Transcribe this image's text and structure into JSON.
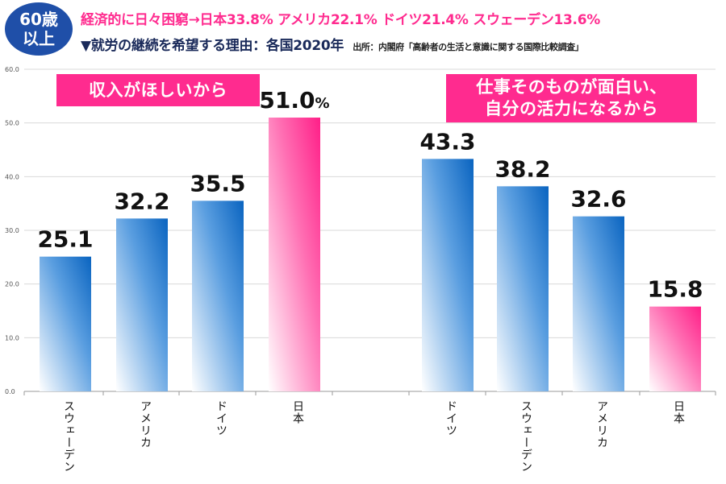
{
  "badge": {
    "line1": "60歳",
    "line2": "以上"
  },
  "headline": "経済的に日々困窮→日本33.8% アメリカ22.1% ドイツ21.4% スウェーデン13.6%",
  "subtitle": "▼就労の継続を希望する理由：各国2020年",
  "source": "出所：内閣府「高齢者の生活と意識に関する国際比較調査」",
  "colors": {
    "blue": "#1a6fc4",
    "pink": "#ff2b8f",
    "badge": "#1f4fa8",
    "label_bg": "#ff2b8f"
  },
  "chart_data": {
    "type": "bar",
    "ylim": [
      0,
      60
    ],
    "yticks": [
      "0.0",
      "10.0",
      "20.0",
      "30.0",
      "40.0",
      "50.0",
      "60.0"
    ],
    "grid": true,
    "groups": [
      {
        "label": "収入がほしいから",
        "categories": [
          "スウェーデン",
          "アメリカ",
          "ドイツ",
          "日本"
        ],
        "values": [
          25.1,
          32.2,
          35.5,
          51.0
        ],
        "value_labels": [
          "25.1",
          "32.2",
          "35.5",
          "51.0%"
        ],
        "highlight": [
          false,
          false,
          false,
          true
        ]
      },
      {
        "label_lines": [
          "仕事そのものが面白い、",
          "自分の活力になるから"
        ],
        "categories": [
          "ドイツ",
          "スウェーデン",
          "アメリカ",
          "日本"
        ],
        "values": [
          43.3,
          38.2,
          32.6,
          15.8
        ],
        "value_labels": [
          "43.3",
          "38.2",
          "32.6",
          "15.8"
        ],
        "highlight": [
          false,
          false,
          false,
          true
        ]
      }
    ]
  }
}
